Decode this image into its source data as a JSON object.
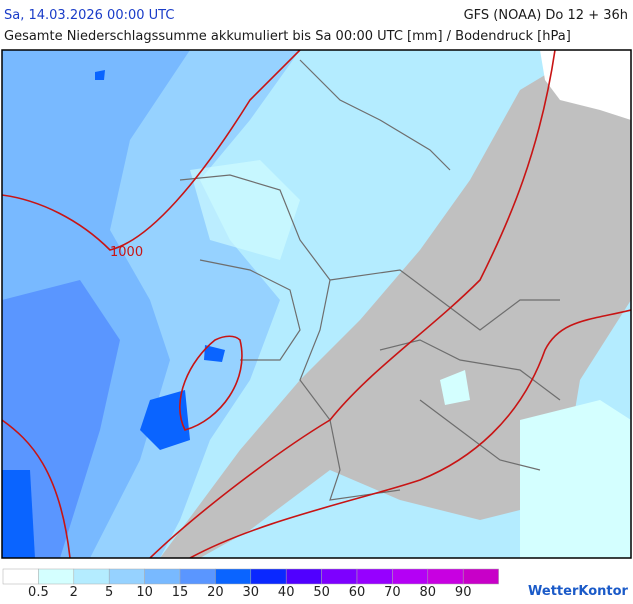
{
  "header": {
    "date": "Sa, 14.03.2026 00:00 UTC",
    "model": "GFS (NOAA) Do 12 + 36h",
    "subtitle": "Gesamte Niederschlagssumme akkumuliert bis Sa 00:00 UTC [mm] / Bodendruck [hPa]"
  },
  "map": {
    "isobar_label": "1000"
  },
  "legend": {
    "colors": [
      "#ffffff",
      "#d4ffff",
      "#b4ecff",
      "#96d2ff",
      "#78b9ff",
      "#5a96ff",
      "#0a64ff",
      "#0a28ff",
      "#5000ff",
      "#7d00ff",
      "#9600ff",
      "#b400f5",
      "#c800e1",
      "#c800c8"
    ],
    "labels": [
      "0.5",
      "2",
      "5",
      "10",
      "15",
      "20",
      "30",
      "40",
      "50",
      "60",
      "70",
      "80",
      "90"
    ]
  },
  "brand": "WetterKontor"
}
